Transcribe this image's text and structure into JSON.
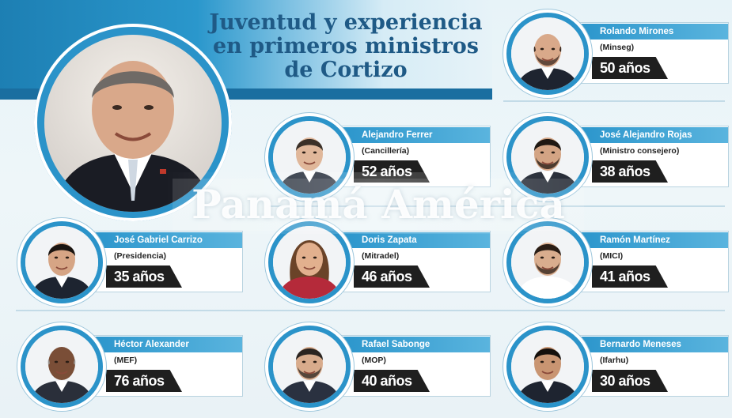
{
  "title_lines": [
    "Juventud y experiencia",
    "en primeros ministros",
    "de Cortizo"
  ],
  "watermark": "Panamá América",
  "ministers": [
    {
      "name": "Rolando Mirones",
      "ministry": "(Minseg)",
      "age": "50 años",
      "skin": "#d9a98a",
      "hair": "#3a2a22",
      "suit": "#1e2430",
      "bald": true,
      "beard": true
    },
    {
      "name": "Alejandro Ferrer",
      "ministry": "(Cancillería)",
      "age": "52 años",
      "skin": "#e0b79a",
      "hair": "#3b3028",
      "suit": "#2b3340",
      "bald": false,
      "beard": false
    },
    {
      "name": "José Alejandro Rojas",
      "ministry": "(Ministro consejero)",
      "age": "38 años",
      "skin": "#d3a484",
      "hair": "#1f1813",
      "suit": "#222833",
      "bald": false,
      "beard": true
    },
    {
      "name": "José Gabriel Carrizo",
      "ministry": "(Presidencia)",
      "age": "35 años",
      "skin": "#d6a585",
      "hair": "#1a1410",
      "suit": "#1d2430",
      "bald": false,
      "beard": false
    },
    {
      "name": "Doris Zapata",
      "ministry": "(Mitradel)",
      "age": "46 años",
      "skin": "#e2b08e",
      "hair": "#6a4328",
      "suit": "#b52a3a",
      "bald": false,
      "beard": false,
      "female": true
    },
    {
      "name": "Ramón Martínez",
      "ministry": "(MICI)",
      "age": "41 años",
      "skin": "#d9ad8e",
      "hair": "#2a1d15",
      "suit": "#ffffff",
      "bald": false,
      "beard": true
    },
    {
      "name": "Héctor Alexander",
      "ministry": "(MEF)",
      "age": "76 años",
      "skin": "#7a4e37",
      "hair": "#9a9490",
      "suit": "#2a2f3a",
      "bald": true,
      "beard": false
    },
    {
      "name": "Rafael Sabonge",
      "ministry": "(MOP)",
      "age": "40 años",
      "skin": "#d8ab8c",
      "hair": "#2b2420",
      "suit": "#2a3140",
      "bald": false,
      "beard": true
    },
    {
      "name": "Bernardo Meneses",
      "ministry": "(Ifarhu)",
      "age": "30 años",
      "skin": "#c99572",
      "hair": "#15100c",
      "suit": "#1e2430",
      "bald": false,
      "beard": false
    }
  ],
  "president": {
    "skin": "#d9a88a",
    "hair": "#6f6a66",
    "suit": "#1a1c24"
  }
}
